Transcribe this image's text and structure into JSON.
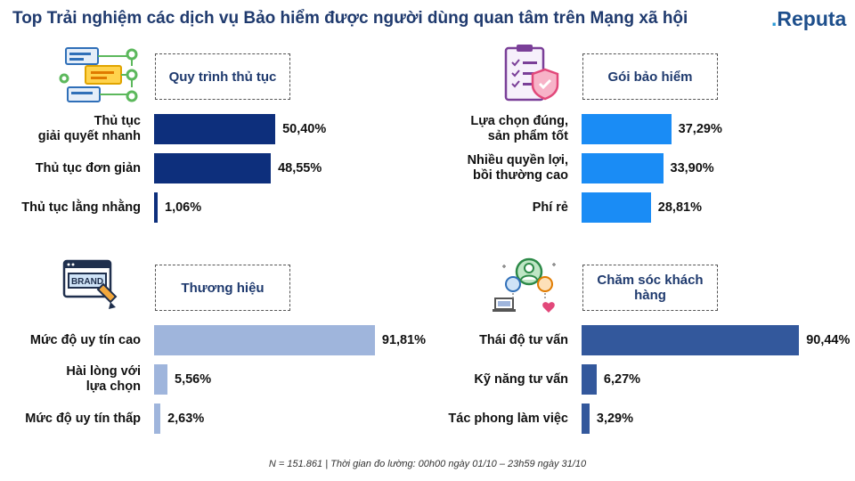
{
  "header": {
    "title": "Top Trải nghiệm các dịch vụ Bảo hiểm được người dùng quan tâm trên Mạng xã hội",
    "logo_main": "Reputa",
    "logo_dot": "."
  },
  "colors": {
    "title": "#1f3a6e",
    "panel_0_bar": "#0d2f7c",
    "panel_1_bar": "#1a8cf5",
    "panel_2_bar": "#9fb5dc",
    "panel_3_bar": "#33589c"
  },
  "chart_data": [
    {
      "type": "bar",
      "orientation": "horizontal",
      "title": "Quy trình thủ tục",
      "icon": "workflow-icon",
      "categories": [
        "Thủ tục\ngiải quyết nhanh",
        "Thủ tục đơn giản",
        "Thủ tục lằng nhằng"
      ],
      "values": [
        50.4,
        48.55,
        1.06
      ],
      "labels": [
        "50,40%",
        "48,55%",
        "1,06%"
      ],
      "xlim": [
        0,
        100
      ]
    },
    {
      "type": "bar",
      "orientation": "horizontal",
      "title": "Gói bảo hiểm",
      "icon": "insurance-document-icon",
      "categories": [
        "Lựa chọn đúng,\nsản phẩm tốt",
        "Nhiều quyền lợi,\nbồi thường cao",
        "Phí rẻ"
      ],
      "values": [
        37.29,
        33.9,
        28.81
      ],
      "labels": [
        "37,29%",
        "33,90%",
        "28,81%"
      ],
      "xlim": [
        0,
        100
      ]
    },
    {
      "type": "bar",
      "orientation": "horizontal",
      "title": "Thương hiệu",
      "icon": "brand-pen-icon",
      "icon_text": "BRAND",
      "categories": [
        "Mức độ uy tín cao",
        "Hài lòng với\nlựa chọn",
        "Mức độ uy tín thấp"
      ],
      "values": [
        91.81,
        5.56,
        2.63
      ],
      "labels": [
        "91,81%",
        "5,56%",
        "2,63%"
      ],
      "xlim": [
        0,
        100
      ]
    },
    {
      "type": "bar",
      "orientation": "horizontal",
      "title": "Chăm sóc khách hàng",
      "icon": "customer-care-icon",
      "categories": [
        "Thái độ tư vấn",
        "Kỹ năng tư vấn",
        "Tác phong làm việc"
      ],
      "values": [
        90.44,
        6.27,
        3.29
      ],
      "labels": [
        "90,44%",
        "6,27%",
        "3,29%"
      ],
      "xlim": [
        0,
        100
      ]
    }
  ],
  "footnote": "N = 151.861 | Thời gian đo lường: 00h00 ngày 01/10 – 23h59 ngày 31/10"
}
